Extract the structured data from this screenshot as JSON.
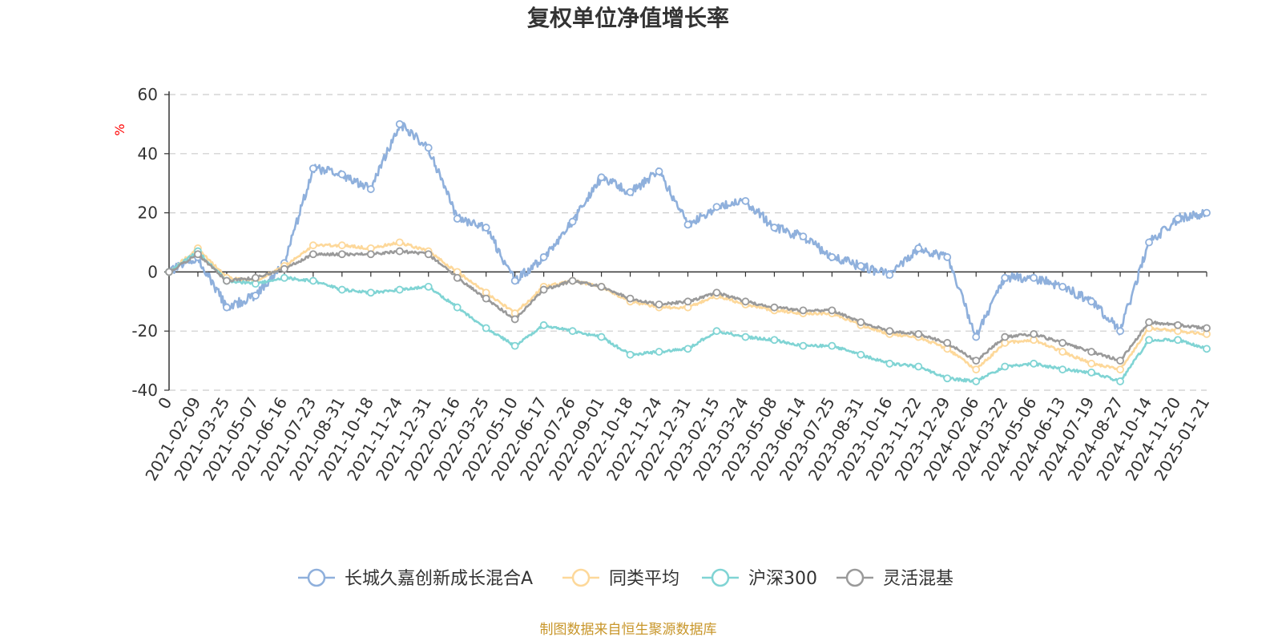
{
  "chart_data": {
    "type": "line",
    "title": "复权单位净值增长率",
    "ylabel": "%",
    "xlabel": "",
    "ylim": [
      -40,
      60
    ],
    "yticks": [
      -40,
      -20,
      0,
      20,
      40,
      60
    ],
    "categories": [
      "0",
      "2021-02-09",
      "2021-03-25",
      "2021-05-07",
      "2021-06-16",
      "2021-07-23",
      "2021-08-31",
      "2021-10-18",
      "2021-11-24",
      "2021-12-31",
      "2022-02-16",
      "2022-03-25",
      "2022-05-10",
      "2022-06-17",
      "2022-07-26",
      "2022-09-01",
      "2022-10-18",
      "2022-11-24",
      "2022-12-31",
      "2023-02-15",
      "2023-03-24",
      "2023-05-08",
      "2023-06-14",
      "2023-07-25",
      "2023-08-31",
      "2023-10-16",
      "2023-11-22",
      "2023-12-29",
      "2024-02-06",
      "2024-03-22",
      "2024-05-06",
      "2024-06-13",
      "2024-07-19",
      "2024-08-27",
      "2024-10-14",
      "2024-11-20",
      "2025-01-21"
    ],
    "legend_position": "bottom",
    "grid": "horizontal dashed",
    "series": [
      {
        "name": "长城久嘉创新成长混合A",
        "color": "#8fb0dc",
        "values": [
          0,
          5,
          -12,
          -8,
          3,
          35,
          33,
          28,
          50,
          42,
          18,
          15,
          -3,
          5,
          17,
          32,
          27,
          34,
          16,
          22,
          24,
          15,
          12,
          5,
          2,
          -1,
          8,
          5,
          -22,
          -2,
          -2,
          -5,
          -10,
          -20,
          10,
          18,
          20
        ]
      },
      {
        "name": "同类平均",
        "color": "#fdd89a",
        "values": [
          0,
          8,
          -2,
          -3,
          2,
          9,
          9,
          8,
          10,
          7,
          0,
          -7,
          -14,
          -5,
          -3,
          -5,
          -10,
          -12,
          -12,
          -8,
          -11,
          -13,
          -14,
          -14,
          -18,
          -21,
          -22,
          -26,
          -33,
          -24,
          -23,
          -27,
          -31,
          -33,
          -19,
          -20,
          -21
        ]
      },
      {
        "name": "沪深300",
        "color": "#80d4d4",
        "values": [
          0,
          7,
          -3,
          -4,
          -2,
          -3,
          -6,
          -7,
          -6,
          -5,
          -12,
          -19,
          -25,
          -18,
          -20,
          -22,
          -28,
          -27,
          -26,
          -20,
          -22,
          -23,
          -25,
          -25,
          -28,
          -31,
          -32,
          -36,
          -37,
          -32,
          -31,
          -33,
          -34,
          -37,
          -23,
          -23,
          -26
        ]
      },
      {
        "name": "灵活混基",
        "color": "#9a9a9a",
        "values": [
          0,
          6,
          -3,
          -2,
          1,
          6,
          6,
          6,
          7,
          6,
          -2,
          -9,
          -16,
          -6,
          -3,
          -5,
          -9,
          -11,
          -10,
          -7,
          -10,
          -12,
          -13,
          -13,
          -17,
          -20,
          -21,
          -24,
          -30,
          -22,
          -21,
          -24,
          -27,
          -30,
          -17,
          -18,
          -19
        ]
      }
    ]
  },
  "source_note": "制图数据来自恒生聚源数据库"
}
